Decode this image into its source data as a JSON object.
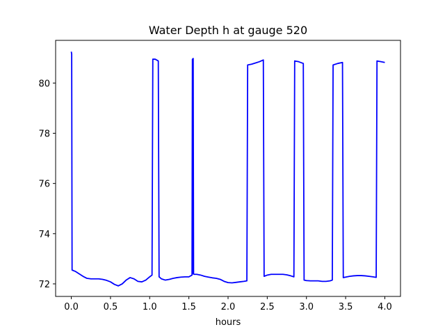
{
  "chart_data": {
    "type": "line",
    "title": "Water Depth h at gauge 520",
    "xlabel": "hours",
    "ylabel": "",
    "xlim": [
      -0.2,
      4.2
    ],
    "ylim": [
      71.5,
      81.7
    ],
    "xticks": [
      0.0,
      0.5,
      1.0,
      1.5,
      2.0,
      2.5,
      3.0,
      3.5,
      4.0
    ],
    "xtick_labels": [
      "0.0",
      "0.5",
      "1.0",
      "1.5",
      "2.0",
      "2.5",
      "3.0",
      "3.5",
      "4.0"
    ],
    "yticks": [
      72,
      74,
      76,
      78,
      80
    ],
    "ytick_labels": [
      "72",
      "74",
      "76",
      "78",
      "80"
    ],
    "grid": false,
    "series": [
      {
        "color": "#0000ff",
        "x": [
          0.0,
          0.005,
          0.01,
          0.05,
          0.1,
          0.15,
          0.2,
          0.25,
          0.3,
          0.35,
          0.4,
          0.45,
          0.5,
          0.55,
          0.6,
          0.65,
          0.7,
          0.75,
          0.8,
          0.85,
          0.9,
          0.95,
          1.0,
          1.03,
          1.04,
          1.07,
          1.11,
          1.12,
          1.15,
          1.2,
          1.25,
          1.3,
          1.35,
          1.4,
          1.45,
          1.5,
          1.54,
          1.545,
          1.55,
          1.555,
          1.56,
          1.565,
          1.57,
          1.6,
          1.65,
          1.7,
          1.75,
          1.8,
          1.85,
          1.9,
          1.95,
          2.0,
          2.05,
          2.1,
          2.15,
          2.2,
          2.24,
          2.25,
          2.3,
          2.35,
          2.4,
          2.45,
          2.46,
          2.5,
          2.55,
          2.6,
          2.65,
          2.7,
          2.75,
          2.8,
          2.84,
          2.85,
          2.9,
          2.96,
          2.97,
          3.0,
          3.05,
          3.1,
          3.15,
          3.2,
          3.25,
          3.3,
          3.33,
          3.34,
          3.4,
          3.46,
          3.47,
          3.5,
          3.55,
          3.6,
          3.65,
          3.7,
          3.75,
          3.8,
          3.85,
          3.89,
          3.9,
          3.95,
          4.0
        ],
        "values": [
          81.25,
          81.15,
          72.55,
          72.5,
          72.4,
          72.3,
          72.22,
          72.2,
          72.2,
          72.2,
          72.18,
          72.14,
          72.08,
          71.98,
          71.92,
          72.0,
          72.15,
          72.25,
          72.2,
          72.1,
          72.08,
          72.15,
          72.28,
          72.35,
          80.95,
          80.95,
          80.88,
          72.28,
          72.2,
          72.15,
          72.18,
          72.22,
          72.25,
          72.27,
          72.28,
          72.28,
          72.35,
          80.95,
          72.4,
          80.98,
          72.4,
          72.38,
          72.38,
          72.38,
          72.35,
          72.3,
          72.27,
          72.24,
          72.22,
          72.18,
          72.1,
          72.05,
          72.04,
          72.06,
          72.08,
          72.1,
          72.12,
          80.72,
          80.75,
          80.8,
          80.85,
          80.92,
          72.3,
          72.35,
          72.38,
          72.38,
          72.38,
          72.38,
          72.36,
          72.32,
          72.28,
          80.88,
          80.85,
          80.78,
          72.15,
          72.13,
          72.12,
          72.12,
          72.12,
          72.1,
          72.1,
          72.12,
          72.15,
          80.72,
          80.78,
          80.82,
          72.25,
          72.27,
          72.3,
          72.32,
          72.33,
          72.33,
          72.32,
          72.3,
          72.28,
          72.26,
          80.88,
          80.85,
          80.82
        ]
      }
    ]
  }
}
